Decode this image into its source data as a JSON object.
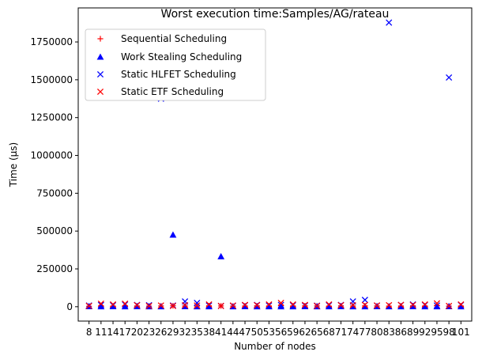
{
  "chart_data": {
    "type": "scatter",
    "title": "Worst execution time:Samples/AG/rateau",
    "xlabel": "Number of nodes",
    "ylabel": "Time (µs)",
    "categories": [
      "8",
      "11",
      "14",
      "17",
      "20",
      "23",
      "26",
      "29",
      "32",
      "35",
      "38",
      "41",
      "44",
      "47",
      "50",
      "53",
      "56",
      "59",
      "62",
      "65",
      "68",
      "71",
      "74",
      "77",
      "80",
      "83",
      "86",
      "89",
      "92",
      "95",
      "98",
      "101"
    ],
    "ylim": [
      -95000,
      1975000
    ],
    "yticks": [
      0,
      250000,
      500000,
      750000,
      1000000,
      1250000,
      1500000,
      1750000
    ],
    "ytick_labels": [
      "0",
      "250000",
      "500000",
      "750000",
      "1000000",
      "1250000",
      "1500000",
      "1750000"
    ],
    "legend_position": "top-left",
    "grid": false,
    "series": [
      {
        "name": "Sequential Scheduling",
        "marker": "plus",
        "color": "#ff0000",
        "values": [
          3000,
          5000,
          4000,
          6000,
          5000,
          4000,
          5000,
          6000,
          5000,
          4000,
          6000,
          5000,
          4000,
          5000,
          6000,
          5000,
          7000,
          5000,
          6000,
          5000,
          4000,
          6000,
          5000,
          6000,
          5000,
          4000,
          5000,
          6000,
          5000,
          7000,
          4000,
          5000
        ]
      },
      {
        "name": "Work Stealing Scheduling",
        "marker": "triangle",
        "color": "#0000ff",
        "values": [
          2000,
          1000,
          2000,
          1000,
          2000,
          1000,
          1000,
          475000,
          2000,
          1000,
          1000,
          332000,
          1000,
          2000,
          1000,
          1000,
          1000,
          1000,
          2000,
          1000,
          1000,
          2000,
          1000,
          1000,
          2000,
          1000,
          1000,
          2000,
          1000,
          1000,
          2000,
          1000
        ]
      },
      {
        "name": "Static HLFET Scheduling",
        "marker": "x",
        "color": "#0000ff",
        "values": [
          8000,
          12000,
          10000,
          15000,
          12000,
          10000,
          1375000,
          8000,
          35000,
          25000,
          8000,
          5000,
          6000,
          10000,
          12000,
          8000,
          12000,
          10000,
          8000,
          7000,
          10000,
          12000,
          35000,
          45000,
          8000,
          1878000,
          12000,
          15000,
          12000,
          8000,
          1515000,
          12000
        ]
      },
      {
        "name": "Static ETF Scheduling",
        "marker": "x",
        "color": "#ff0000",
        "values": [
          5000,
          20000,
          15000,
          20000,
          10000,
          5000,
          8000,
          5000,
          10000,
          8000,
          15000,
          5000,
          8000,
          12000,
          10000,
          15000,
          25000,
          15000,
          12000,
          5000,
          15000,
          10000,
          10000,
          12000,
          8000,
          10000,
          12000,
          12000,
          15000,
          22000,
          5000,
          15000
        ]
      }
    ]
  }
}
